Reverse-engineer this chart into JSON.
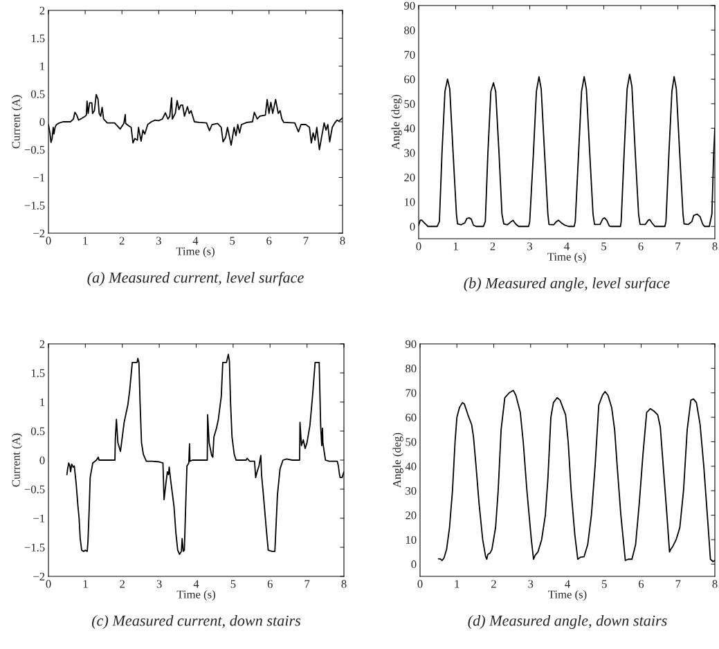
{
  "chart_data": [
    {
      "type": "line",
      "xlabel": "Time (s)",
      "ylabel": "Current (A)",
      "annotations": [
        "(a) Measured current, level surface"
      ],
      "xlim": [
        0,
        8
      ],
      "ylim": [
        -2,
        2
      ],
      "xticks": [
        0,
        1,
        2,
        3,
        4,
        5,
        6,
        7,
        8
      ],
      "yticks": [
        {
          "value": -2,
          "label": "−2"
        },
        {
          "value": -1.5,
          "label": "−1.5"
        },
        {
          "value": -1,
          "label": "−1"
        },
        {
          "value": -0.5,
          "label": "−0.5"
        },
        0,
        0.5,
        1,
        1.5,
        2
      ],
      "x": [
        0,
        0.04,
        0.07,
        0.1,
        0.13,
        0.15,
        0.18,
        0.22,
        0.3,
        0.4,
        0.6,
        0.68,
        0.72,
        0.77,
        0.82,
        0.9,
        1.0,
        1.03,
        1.05,
        1.08,
        1.12,
        1.18,
        1.2,
        1.25,
        1.3,
        1.35,
        1.38,
        1.42,
        1.46,
        1.5,
        1.6,
        1.8,
        1.95,
        2.05,
        2.09,
        2.1,
        2.2,
        2.25,
        2.3,
        2.35,
        2.42,
        2.45,
        2.52,
        2.57,
        2.62,
        2.7,
        2.8,
        2.9,
        3.0,
        3.1,
        3.18,
        3.25,
        3.3,
        3.35,
        3.37,
        3.45,
        3.5,
        3.55,
        3.6,
        3.65,
        3.7,
        3.78,
        3.83,
        3.88,
        3.97,
        4.1,
        4.3,
        4.38,
        4.45,
        4.6,
        4.7,
        4.75,
        4.82,
        4.87,
        4.97,
        5.05,
        5.1,
        5.15,
        5.2,
        5.25,
        5.4,
        5.55,
        5.6,
        5.68,
        5.75,
        5.9,
        5.95,
        6.0,
        6.05,
        6.1,
        6.18,
        6.25,
        6.3,
        6.35,
        6.4,
        6.7,
        6.8,
        6.87,
        7.0,
        7.1,
        7.15,
        7.2,
        7.25,
        7.3,
        7.37,
        7.45,
        7.5,
        7.55,
        7.6,
        7.65,
        7.72,
        7.8,
        7.85,
        7.9,
        8.0
      ],
      "series": [
        {
          "color": "#000000",
          "values": [
            -0.05,
            -0.2,
            -0.37,
            -0.3,
            -0.1,
            -0.22,
            -0.1,
            -0.05,
            -0.02,
            0,
            0,
            0.05,
            0.17,
            0.12,
            0.03,
            0.06,
            0.1,
            0.12,
            0.37,
            0.15,
            0.34,
            0.34,
            0.15,
            0.2,
            0.49,
            0.4,
            0.15,
            0.1,
            0.26,
            0.05,
            -0.02,
            -0.02,
            -0.13,
            -0.03,
            0.13,
            -0.03,
            -0.08,
            -0.1,
            -0.38,
            -0.3,
            -0.33,
            -0.1,
            -0.35,
            -0.15,
            -0.22,
            -0.05,
            0.0,
            0.03,
            0.02,
            0.05,
            0.16,
            0.05,
            0.1,
            0.43,
            0.05,
            0.15,
            0.38,
            0.22,
            0.3,
            0.3,
            0.1,
            0.27,
            0.15,
            0.2,
            0.0,
            -0.01,
            -0.02,
            -0.16,
            -0.05,
            -0.03,
            -0.1,
            -0.36,
            -0.28,
            -0.1,
            -0.42,
            -0.1,
            -0.25,
            -0.05,
            -0.2,
            -0.05,
            -0.01,
            0.0,
            0.17,
            0.05,
            0.1,
            0.12,
            0.4,
            0.15,
            0.35,
            0.15,
            0.4,
            0.15,
            0.2,
            0.05,
            -0.01,
            -0.02,
            -0.18,
            -0.05,
            -0.05,
            -0.1,
            -0.38,
            -0.2,
            -0.33,
            -0.1,
            -0.5,
            -0.2,
            -0.02,
            -0.15,
            -0.05,
            -0.36,
            -0.1,
            -0.01,
            0.03,
            0.01,
            0.07
          ]
        }
      ]
    },
    {
      "type": "line",
      "xlabel": "Time (s)",
      "ylabel": "Angle (deg)",
      "annotations": [
        "(b) Measured angle, level surface"
      ],
      "xlim": [
        0,
        8
      ],
      "ylim": [
        -5,
        90
      ],
      "xticks": [
        0,
        1,
        2,
        3,
        4,
        5,
        6,
        7,
        8
      ],
      "yticks": [
        0,
        10,
        20,
        30,
        40,
        50,
        60,
        70,
        80,
        90
      ],
      "x": [
        0,
        0.04,
        0.08,
        0.15,
        0.25,
        0.5,
        0.56,
        0.63,
        0.71,
        0.78,
        0.84,
        0.93,
        1.02,
        1.05,
        1.15,
        1.25,
        1.3,
        1.36,
        1.42,
        1.48,
        1.55,
        1.75,
        1.8,
        1.87,
        1.95,
        2.02,
        2.08,
        2.17,
        2.25,
        2.3,
        2.4,
        2.5,
        2.55,
        2.62,
        2.7,
        2.97,
        3.0,
        3.1,
        3.18,
        3.25,
        3.31,
        3.4,
        3.49,
        3.52,
        3.65,
        3.72,
        3.78,
        3.85,
        3.95,
        4.05,
        4.2,
        4.23,
        4.32,
        4.4,
        4.47,
        4.53,
        4.62,
        4.71,
        4.75,
        4.9,
        4.97,
        5.02,
        5.08,
        5.15,
        5.2,
        5.45,
        5.47,
        5.55,
        5.63,
        5.7,
        5.76,
        5.85,
        5.94,
        5.98,
        6.12,
        6.2,
        6.24,
        6.3,
        6.38,
        6.65,
        6.68,
        6.76,
        6.84,
        6.9,
        6.96,
        7.05,
        7.14,
        7.17,
        7.28,
        7.38,
        7.43,
        7.52,
        7.6,
        7.67,
        7.72,
        7.85,
        7.92,
        7.97,
        8.0
      ],
      "series": [
        {
          "color": "#000000",
          "values": [
            0.5,
            2.5,
            2.6,
            1.5,
            0,
            0,
            2,
            30,
            55,
            60,
            56,
            30,
            5,
            1,
            0.7,
            1.5,
            3.2,
            3.5,
            3,
            0.5,
            0,
            0,
            2,
            30,
            55,
            58.5,
            55,
            30,
            5,
            1,
            0.7,
            2,
            2.5,
            1,
            0,
            0,
            2,
            30,
            55,
            61,
            56,
            30,
            5,
            0.8,
            0.7,
            2,
            2.5,
            1.5,
            0.5,
            0,
            0,
            2,
            30,
            55,
            61,
            56,
            30,
            5,
            0.8,
            0.8,
            3,
            3.5,
            2.5,
            0.2,
            0,
            0,
            2,
            30,
            56,
            62,
            57,
            30,
            5,
            0.8,
            0.8,
            2.5,
            2.8,
            1.5,
            0,
            0,
            2,
            30,
            55,
            61,
            56,
            30,
            5,
            1,
            0.8,
            2,
            4.5,
            5,
            4,
            1,
            0,
            0,
            5,
            30,
            40
          ]
        }
      ]
    },
    {
      "type": "line",
      "xlabel": "Time (s)",
      "ylabel": "Current (A)",
      "annotations": [
        "(c) Measured current, down stairs"
      ],
      "xlim": [
        0,
        8
      ],
      "ylim": [
        -2,
        2
      ],
      "xticks": [
        0,
        1,
        2,
        3,
        4,
        5,
        6,
        7,
        8
      ],
      "yticks": [
        {
          "value": -2,
          "label": "−2"
        },
        {
          "value": -1.5,
          "label": "−1.5"
        },
        {
          "value": -1,
          "label": "−1"
        },
        {
          "value": -0.5,
          "label": "−0.5"
        },
        0,
        0.5,
        1,
        1.5,
        2
      ],
      "x": [
        0.5,
        0.52,
        0.55,
        0.58,
        0.6,
        0.63,
        0.67,
        0.7,
        0.75,
        0.8,
        0.83,
        0.86,
        0.9,
        0.95,
        1.0,
        1.05,
        1.07,
        1.1,
        1.13,
        1.2,
        1.3,
        1.35,
        1.37,
        1.6,
        1.8,
        1.81,
        1.84,
        1.88,
        1.95,
        2.0,
        2.05,
        2.1,
        2.15,
        2.2,
        2.27,
        2.4,
        2.42,
        2.45,
        2.48,
        2.52,
        2.57,
        2.65,
        2.8,
        3.0,
        3.1,
        3.13,
        3.18,
        3.22,
        3.25,
        3.27,
        3.3,
        3.33,
        3.4,
        3.45,
        3.5,
        3.55,
        3.6,
        3.62,
        3.65,
        3.68,
        3.72,
        3.75,
        3.8,
        3.82,
        3.83,
        3.9,
        4.0,
        4.3,
        4.31,
        4.35,
        4.42,
        4.45,
        4.48,
        4.55,
        4.6,
        4.68,
        4.72,
        4.82,
        4.87,
        4.9,
        4.93,
        4.97,
        5.03,
        5.08,
        5.2,
        5.35,
        5.38,
        5.45,
        5.58,
        5.61,
        5.65,
        5.7,
        5.75,
        5.77,
        5.82,
        5.88,
        5.9,
        5.95,
        6.05,
        6.13,
        6.15,
        6.2,
        6.27,
        6.35,
        6.45,
        6.6,
        6.8,
        6.81,
        6.85,
        6.9,
        6.95,
        7.0,
        7.08,
        7.15,
        7.22,
        7.33,
        7.37,
        7.4,
        7.42,
        7.43,
        7.5,
        7.6,
        7.82,
        7.85,
        7.88,
        7.9,
        7.95,
        8.0
      ],
      "series": [
        {
          "color": "#000000",
          "values": [
            -0.25,
            -0.15,
            -0.05,
            -0.1,
            -0.2,
            -0.07,
            -0.12,
            -0.1,
            -0.4,
            -0.8,
            -1.0,
            -1.35,
            -1.55,
            -1.57,
            -1.55,
            -1.57,
            -1.4,
            -0.9,
            -0.3,
            -0.05,
            0,
            0.05,
            0,
            0,
            0,
            0.35,
            0.7,
            0.3,
            0.15,
            0.4,
            0.65,
            0.8,
            0.95,
            1.2,
            1.68,
            1.68,
            1.75,
            1.68,
            1.0,
            0.3,
            0.1,
            -0.02,
            -0.02,
            -0.03,
            -0.05,
            -0.68,
            -0.4,
            -0.2,
            -0.25,
            -0.12,
            -0.3,
            -0.45,
            -0.8,
            -1.25,
            -1.55,
            -1.62,
            -1.57,
            -1.35,
            -1.57,
            -1.55,
            -0.7,
            -0.1,
            -0.05,
            0.28,
            -0.02,
            0,
            0,
            0,
            0.78,
            0.3,
            0.08,
            0.05,
            0.4,
            0.55,
            0.7,
            1.1,
            1.68,
            1.68,
            1.82,
            1.7,
            1.0,
            0.4,
            0.1,
            0,
            0,
            0,
            0.03,
            -0.02,
            -0.02,
            -0.3,
            -0.2,
            -0.1,
            0.08,
            -0.25,
            -0.6,
            -1.05,
            -1.2,
            -1.55,
            -1.57,
            -1.57,
            -1.3,
            -0.6,
            -0.15,
            0,
            0.02,
            0,
            0,
            0.65,
            0.25,
            0.35,
            0.2,
            0.3,
            0.6,
            1.1,
            1.68,
            1.68,
            0.6,
            0.25,
            0.55,
            0.3,
            0.0,
            -0.02,
            -0.02,
            -0.1,
            -0.25,
            -0.3,
            -0.3,
            -0.2
          ]
        }
      ]
    },
    {
      "type": "line",
      "xlabel": "Time (s)",
      "ylabel": "Angle (deg)",
      "annotations": [
        "(d) Measured angle, down stairs"
      ],
      "xlim": [
        0,
        8
      ],
      "ylim": [
        -5,
        90
      ],
      "xticks": [
        0,
        1,
        2,
        3,
        4,
        5,
        6,
        7,
        8
      ],
      "yticks": [
        0,
        10,
        20,
        30,
        40,
        50,
        60,
        70,
        80,
        90
      ],
      "x": [
        0.5,
        0.55,
        0.6,
        0.65,
        0.72,
        0.8,
        0.88,
        0.95,
        1.0,
        1.07,
        1.15,
        1.2,
        1.3,
        1.4,
        1.45,
        1.52,
        1.6,
        1.7,
        1.78,
        1.81,
        1.84,
        1.9,
        1.95,
        2.05,
        2.12,
        2.2,
        2.3,
        2.42,
        2.53,
        2.6,
        2.72,
        2.8,
        2.9,
        3.02,
        3.08,
        3.12,
        3.2,
        3.3,
        3.4,
        3.47,
        3.55,
        3.62,
        3.72,
        3.8,
        3.95,
        4.02,
        4.1,
        4.2,
        4.28,
        4.35,
        4.45,
        4.55,
        4.65,
        4.75,
        4.85,
        4.95,
        5.02,
        5.1,
        5.2,
        5.28,
        5.35,
        5.45,
        5.57,
        5.65,
        5.75,
        5.85,
        5.95,
        6.05,
        6.15,
        6.25,
        6.35,
        6.45,
        6.52,
        6.6,
        6.7,
        6.77,
        6.8,
        6.85,
        6.95,
        7.05,
        7.15,
        7.25,
        7.35,
        7.42,
        7.5,
        7.6,
        7.7,
        7.82,
        7.88,
        7.95,
        8.0
      ],
      "series": [
        {
          "color": "#000000",
          "values": [
            2.2,
            2.1,
            1.5,
            2.5,
            6,
            15,
            30,
            50,
            60,
            64,
            66,
            65.5,
            61,
            57,
            52,
            40,
            25,
            10,
            3,
            2,
            4,
            4.5,
            6,
            15,
            30,
            55,
            68,
            70,
            71,
            69,
            62,
            50,
            30,
            10,
            2,
            3.5,
            5,
            10,
            20,
            35,
            60,
            66,
            68,
            67,
            61,
            50,
            30,
            12,
            2,
            2.8,
            3,
            8,
            20,
            40,
            65,
            69,
            70.5,
            69,
            64,
            55,
            40,
            20,
            1.5,
            2,
            2,
            8,
            25,
            45,
            62,
            63.5,
            62.5,
            61,
            56,
            40,
            20,
            5,
            6,
            7,
            10,
            15,
            30,
            55,
            67,
            67.5,
            66,
            57,
            40,
            15,
            2,
            1,
            1.5
          ]
        }
      ]
    }
  ]
}
